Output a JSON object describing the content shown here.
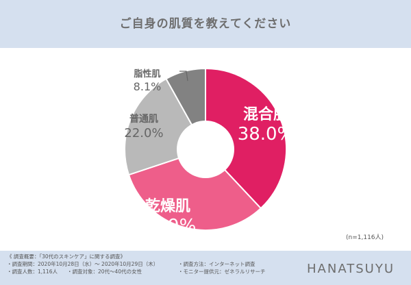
{
  "header": {
    "title": "ご自身の肌質を教えてください"
  },
  "chart_data": {
    "type": "pie",
    "title": "ご自身の肌質を教えてください",
    "slices": [
      {
        "label": "混合肌",
        "value": 38.0,
        "display": "38.0%",
        "color": "#e01f63"
      },
      {
        "label": "乾燥肌",
        "value": 31.9,
        "display": "31.9%",
        "color": "#ee5e8a"
      },
      {
        "label": "普通肌",
        "value": 22.0,
        "display": "22.0%",
        "color": "#b9b9b9"
      },
      {
        "label": "脂性肌",
        "value": 8.1,
        "display": "8.1%",
        "color": "#828282"
      }
    ],
    "donut": true,
    "n_label": "(n=1,116人)"
  },
  "footer": {
    "summary_title": "《 調査概要：「30代のスキンケア」に関する調査》",
    "period": "・調査期間：2020年10月28日（水）～ 2020年10月29日（木）",
    "method": "・調査方法：インターネット調査",
    "people": "・調査人数：1,116人",
    "target": "・調査対象：20代〜40代の女性",
    "provider": "・モニター提供元：ゼネラルリサーチ",
    "brand": "HANATSUYU"
  }
}
